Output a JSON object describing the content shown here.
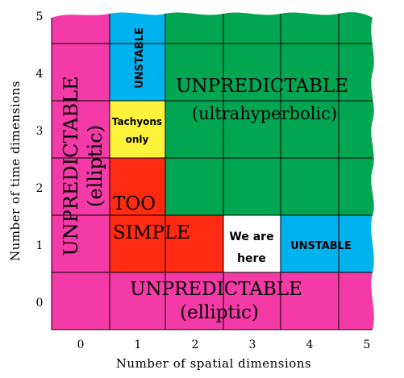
{
  "diagram": {
    "x_axis_label": "Number of spatial dimensions",
    "y_axis_label": "Number of time dimensions",
    "x_ticks": [
      "0",
      "1",
      "2",
      "3",
      "4",
      "5"
    ],
    "y_ticks": [
      "0",
      "1",
      "2",
      "3",
      "4",
      "5"
    ],
    "colors": {
      "magenta": "#f33aa6",
      "cyan": "#00b3ee",
      "green": "#00a651",
      "yellow": "#fff23a",
      "red": "#ff2a12",
      "white": "#ffffff"
    },
    "regions": {
      "unpredictable_elliptic_left": [
        "UNPREDICTABLE",
        "(elliptic)"
      ],
      "unstable_top": "UNSTABLE",
      "unpredictable_ultrahyperbolic": [
        "UNPREDICTABLE",
        "(ultrahyperbolic)"
      ],
      "tachyons_only": [
        "Tachyons",
        "only"
      ],
      "too_simple": [
        "TOO",
        "SIMPLE"
      ],
      "we_are_here": [
        "We are",
        "here"
      ],
      "unstable_right": "UNSTABLE",
      "unpredictable_elliptic_bottom": [
        "UNPREDICTABLE",
        "(elliptic)"
      ]
    }
  }
}
